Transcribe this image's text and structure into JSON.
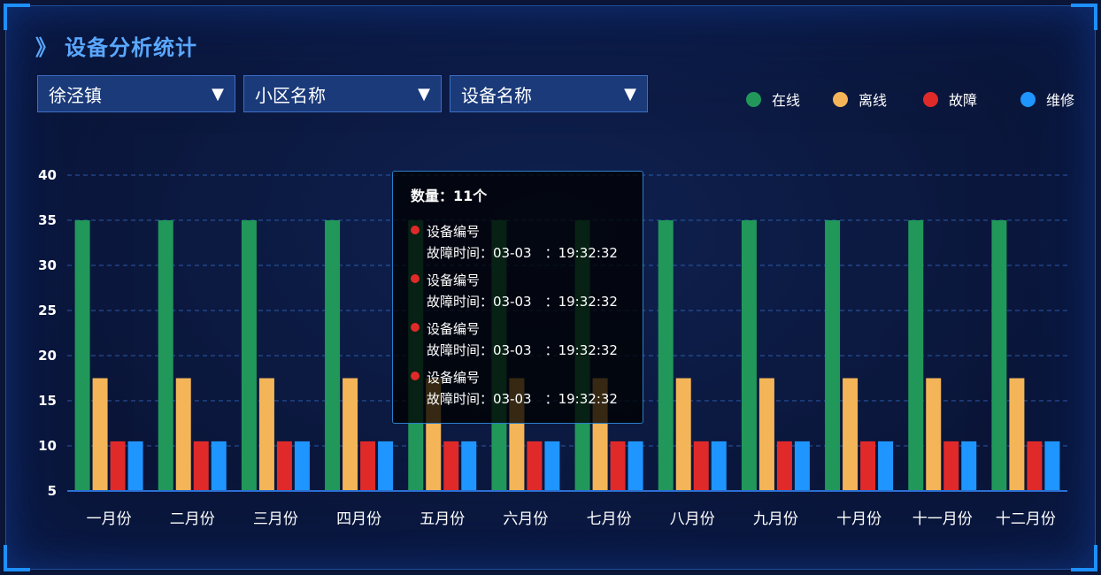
{
  "title": "设备分析统计",
  "title_icon": "double-chevron-icon",
  "filters": [
    {
      "value": "徐泾镇"
    },
    {
      "value": "小区名称"
    },
    {
      "value": "设备名称"
    }
  ],
  "legend": [
    {
      "label": "在线",
      "color": "#21985a"
    },
    {
      "label": "离线",
      "color": "#f4b558"
    },
    {
      "label": "故障",
      "color": "#e02a2a"
    },
    {
      "label": "维修",
      "color": "#1f95ff"
    }
  ],
  "chart_data": {
    "type": "bar",
    "categories": [
      "一月份",
      "二月份",
      "三月份",
      "四月份",
      "五月份",
      "六月份",
      "七月份",
      "八月份",
      "九月份",
      "十月份",
      "十一月份",
      "十二月份"
    ],
    "series": [
      {
        "name": "在线",
        "color": "#21985a",
        "values": [
          35,
          35,
          35,
          35,
          35,
          35,
          35,
          35,
          35,
          35,
          35,
          35
        ]
      },
      {
        "name": "离线",
        "color": "#f4b558",
        "values": [
          17.5,
          17.5,
          17.5,
          17.5,
          17.5,
          17.5,
          17.5,
          17.5,
          17.5,
          17.5,
          17.5,
          17.5
        ]
      },
      {
        "name": "故障",
        "color": "#e02a2a",
        "values": [
          10.5,
          10.5,
          10.5,
          10.5,
          10.5,
          10.5,
          10.5,
          10.5,
          10.5,
          10.5,
          10.5,
          10.5
        ]
      },
      {
        "name": "维修",
        "color": "#1f95ff",
        "values": [
          10.5,
          10.5,
          10.5,
          10.5,
          10.5,
          10.5,
          10.5,
          10.5,
          10.5,
          10.5,
          10.5,
          10.5
        ]
      }
    ],
    "yticks": [
      "40",
      "35",
      "30",
      "25",
      "20",
      "15",
      "10",
      "5"
    ],
    "ylim": [
      5,
      40
    ],
    "grid": true,
    "legend_position": "top-right"
  },
  "tooltip": {
    "title": "数量：11个",
    "items": [
      {
        "label": "设备编号",
        "time": "故障时间：03-03　：19:32:32"
      },
      {
        "label": "设备编号",
        "time": "故障时间：03-03　：19:32:32"
      },
      {
        "label": "设备编号",
        "time": "故障时间：03-03　：19:32:32"
      },
      {
        "label": "设备编号",
        "time": "故障时间：03-03　：19:32:32"
      }
    ]
  }
}
